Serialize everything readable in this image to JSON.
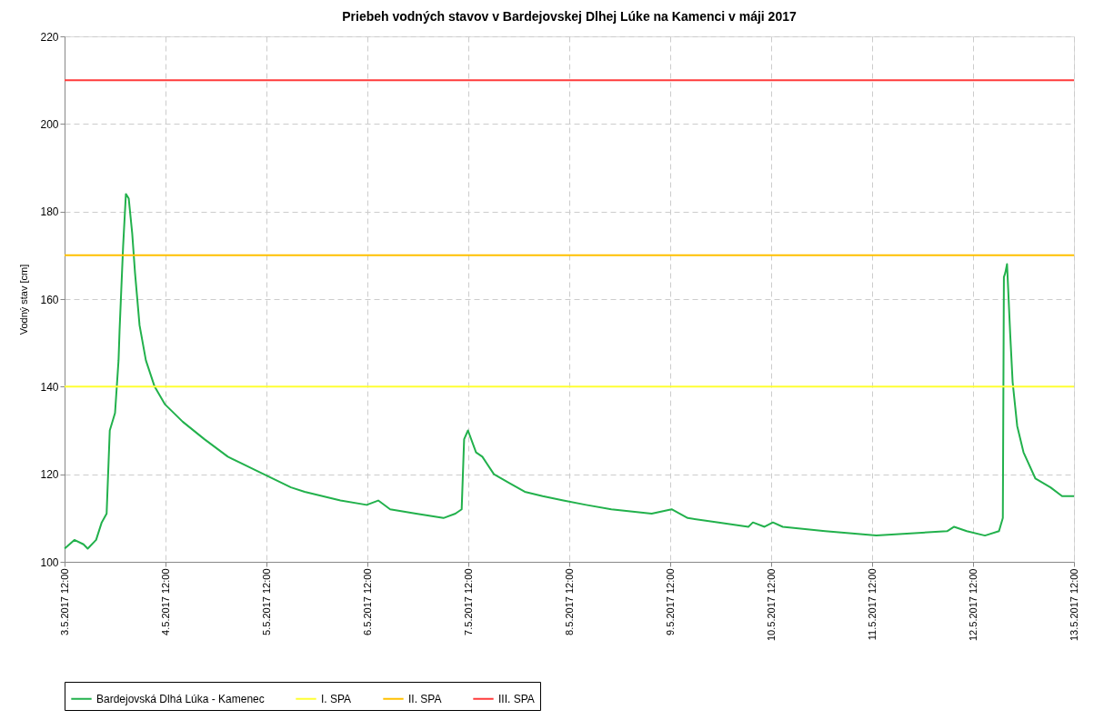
{
  "chart_data": {
    "type": "line",
    "title": "Priebeh vodných stavov v Bardejovskej Dlhej Lúke na Kamenci v máji 2017",
    "ylabel": "Vodný stav [cm]",
    "x": [
      "2017-05-03T12:00",
      "2017-05-03T14:20",
      "2017-05-03T16:30",
      "2017-05-03T17:30",
      "2017-05-03T19:30",
      "2017-05-03T20:50",
      "2017-05-03T22:00",
      "2017-05-03T22:45",
      "2017-05-04T00:00",
      "2017-05-04T00:50",
      "2017-05-04T01:05",
      "2017-05-04T01:55",
      "2017-05-04T02:35",
      "2017-05-04T03:15",
      "2017-05-04T04:05",
      "2017-05-04T04:45",
      "2017-05-04T05:50",
      "2017-05-04T07:20",
      "2017-05-04T09:25",
      "2017-05-04T11:50",
      "2017-05-04T16:05",
      "2017-05-04T21:15",
      "2017-05-05T02:50",
      "2017-05-05T09:15",
      "2017-05-05T17:50",
      "2017-05-05T21:05",
      "2017-05-06T05:35",
      "2017-05-06T11:50",
      "2017-05-06T14:35",
      "2017-05-06T17:25",
      "2017-05-06T23:35",
      "2017-05-07T06:05",
      "2017-05-07T08:55",
      "2017-05-07T10:25",
      "2017-05-07T11:00",
      "2017-05-07T11:55",
      "2017-05-07T13:50",
      "2017-05-07T15:20",
      "2017-05-07T18:05",
      "2017-05-07T21:45",
      "2017-05-08T01:25",
      "2017-05-08T05:40",
      "2017-05-08T10:35",
      "2017-05-08T16:00",
      "2017-05-08T22:00",
      "2017-05-09T07:35",
      "2017-05-09T12:20",
      "2017-05-09T16:10",
      "2017-05-09T23:30",
      "2017-05-10T06:35",
      "2017-05-10T07:40",
      "2017-05-10T10:25",
      "2017-05-10T12:25",
      "2017-05-10T14:45",
      "2017-05-11T00:50",
      "2017-05-11T13:00",
      "2017-05-12T05:50",
      "2017-05-12T07:30",
      "2017-05-12T10:30",
      "2017-05-12T14:50",
      "2017-05-12T18:10",
      "2017-05-12T19:05",
      "2017-05-12T19:20",
      "2017-05-12T19:40",
      "2017-05-12T20:05",
      "2017-05-12T20:50",
      "2017-05-12T21:25",
      "2017-05-12T22:30",
      "2017-05-13T00:00",
      "2017-05-13T02:50",
      "2017-05-13T06:25",
      "2017-05-13T09:10",
      "2017-05-13T12:00"
    ],
    "series": [
      {
        "name": "Bardejovská Dlhá Lúka - Kamenec",
        "color": "#22b14c",
        "values": [
          103,
          105,
          104,
          103,
          105,
          109,
          111,
          130,
          134,
          146,
          153,
          172,
          184,
          183,
          175,
          166,
          154,
          146,
          140,
          136,
          132,
          128,
          124,
          121,
          117,
          116,
          114,
          113,
          114,
          112,
          111,
          110,
          111,
          112,
          128,
          130,
          125,
          124,
          120,
          118,
          116,
          115,
          114,
          113,
          112,
          111,
          112,
          110,
          109,
          108,
          109,
          108,
          109,
          108,
          107,
          106,
          107,
          108,
          107,
          106,
          107,
          110,
          165,
          166,
          168,
          152,
          141,
          131,
          125,
          119,
          117,
          115,
          115
        ]
      }
    ],
    "ref_lines": [
      {
        "axis": "y",
        "value": 140,
        "label": "I. SPA",
        "color": "#ffff33"
      },
      {
        "axis": "y",
        "value": 170,
        "label": "II. SPA",
        "color": "#ffc000"
      },
      {
        "axis": "y",
        "value": 210,
        "label": "III. SPA",
        "color": "#ff3b3b"
      }
    ],
    "xlim": [
      "2017-05-03T12:00",
      "2017-05-13T12:00"
    ],
    "xticks": [
      {
        "value": "2017-05-03T12:00",
        "label": "3.5.2017 12:00"
      },
      {
        "value": "2017-05-04T12:00",
        "label": "4.5.2017 12:00"
      },
      {
        "value": "2017-05-05T12:00",
        "label": "5.5.2017 12:00"
      },
      {
        "value": "2017-05-06T12:00",
        "label": "6.5.2017 12:00"
      },
      {
        "value": "2017-05-07T12:00",
        "label": "7.5.2017 12:00"
      },
      {
        "value": "2017-05-08T12:00",
        "label": "8.5.2017 12:00"
      },
      {
        "value": "2017-05-09T12:00",
        "label": "9.5.2017 12:00"
      },
      {
        "value": "2017-05-10T12:00",
        "label": "10.5.2017 12:00"
      },
      {
        "value": "2017-05-11T12:00",
        "label": "11.5.2017 12:00"
      },
      {
        "value": "2017-05-12T12:00",
        "label": "12.5.2017 12:00"
      },
      {
        "value": "2017-05-13T12:00",
        "label": "13.5.2017 12:00"
      }
    ],
    "ylim": [
      100,
      220
    ],
    "yticks": [
      100,
      120,
      140,
      160,
      180,
      200,
      220
    ],
    "grid": true,
    "legend": "bottom",
    "marker": "none",
    "line_style": "solid"
  }
}
